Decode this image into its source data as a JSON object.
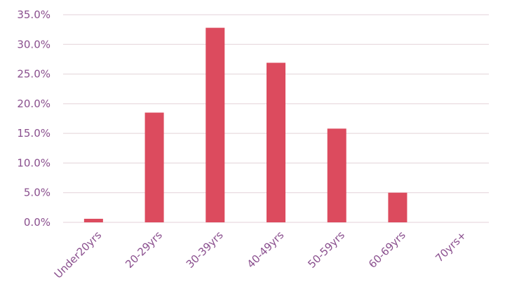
{
  "chart_data": {
    "type": "bar",
    "categories": [
      "Under20yrs",
      "20-29yrs",
      "30-39yrs",
      "40-49yrs",
      "50-59yrs",
      "60-69yrs",
      "70yrs+"
    ],
    "values": [
      0.6,
      18.5,
      32.8,
      26.9,
      15.8,
      5.0,
      0.0
    ],
    "ylim": [
      0,
      35
    ],
    "yticks": [
      0,
      5,
      10,
      15,
      20,
      25,
      30,
      35
    ],
    "ytick_labels": [
      "0.0%",
      "5.0%",
      "10.0%",
      "15.0%",
      "20.0%",
      "25.0%",
      "30.0%",
      "35.0%"
    ],
    "grid": true,
    "title": "",
    "xlabel": "",
    "ylabel": "",
    "colors": {
      "bar": "#dc4b5e",
      "grid": "#e3d2d8",
      "text": "#8a4f8e"
    }
  }
}
